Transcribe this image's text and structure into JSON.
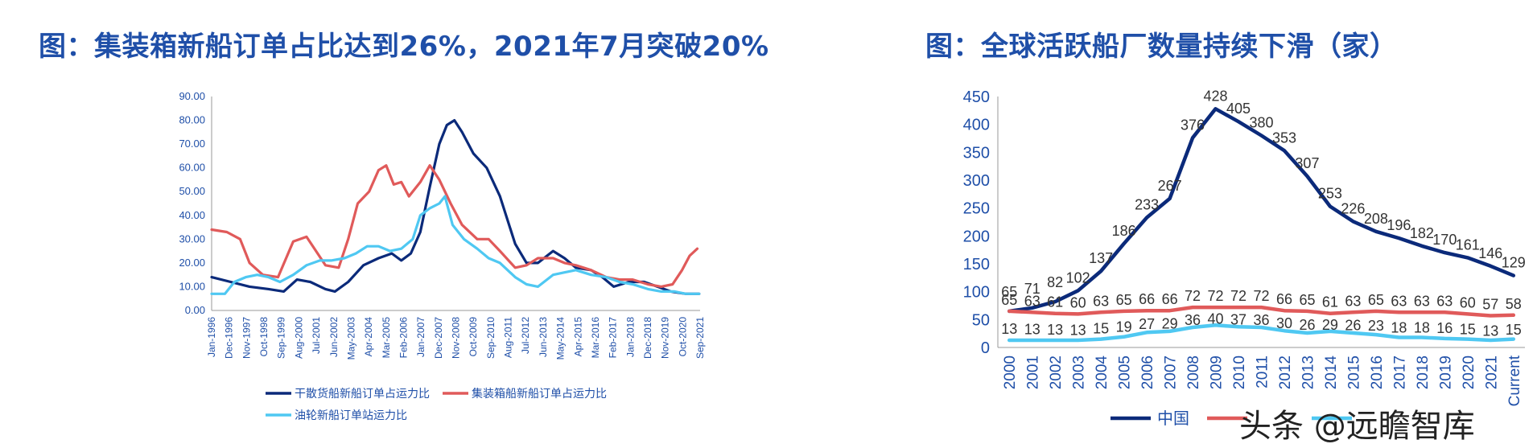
{
  "titles": {
    "left": "图：集装箱新船订单占比达到26%，2021年7月突破20%",
    "right": "图：全球活跃船厂数量持续下滑（家）"
  },
  "watermark": "头条 @远瞻智库",
  "chart_data": [
    {
      "type": "line",
      "ylim": [
        0,
        90
      ],
      "yticks": [
        "0.00",
        "10.00",
        "20.00",
        "30.00",
        "40.00",
        "50.00",
        "60.00",
        "70.00",
        "80.00",
        "90.00"
      ],
      "xticks": [
        "Jan-1996",
        "Dec-1996",
        "Nov-1997",
        "Oct-1998",
        "Sep-1999",
        "Aug-2000",
        "Jul-2001",
        "Jun-2002",
        "May-2003",
        "Apr-2004",
        "Mar-2005",
        "Feb-2006",
        "Jan-2007",
        "Dec-2007",
        "Nov-2008",
        "Oct-2009",
        "Sep-2010",
        "Aug-2011",
        "Jul-2012",
        "Jun-2013",
        "May-2014",
        "Apr-2015",
        "Mar-2016",
        "Feb-2017",
        "Jan-2018",
        "Dec-2018",
        "Nov-2019",
        "Oct-2020",
        "Sep-2021"
      ],
      "series": [
        {
          "name": "干散货船新船订单占运力比",
          "color": "#0b2a7a",
          "x": [
            1996.0,
            1997.0,
            1998.0,
            1999.0,
            1999.8,
            2000.5,
            2001.2,
            2002.0,
            2002.5,
            2003.2,
            2004.0,
            2004.8,
            2005.5,
            2006.0,
            2006.5,
            2007.0,
            2007.5,
            2008.0,
            2008.4,
            2008.8,
            2009.2,
            2009.8,
            2010.5,
            2011.2,
            2012.0,
            2012.6,
            2013.2,
            2014.0,
            2014.6,
            2015.2,
            2016.0,
            2016.6,
            2017.2,
            2018.0,
            2018.8,
            2019.5,
            2020.2,
            2021.0,
            2021.7
          ],
          "values": [
            14,
            12,
            10,
            9,
            8,
            13,
            12,
            9,
            8,
            12,
            19,
            22,
            24,
            21,
            24,
            33,
            52,
            70,
            78,
            80,
            75,
            66,
            60,
            48,
            28,
            20,
            20,
            25,
            22,
            18,
            17,
            14,
            10,
            12,
            12,
            10,
            8,
            7,
            7
          ]
        },
        {
          "name": "集装箱船新船订单占运力比",
          "color": "#e05a5a",
          "x": [
            1996.0,
            1996.8,
            1997.5,
            1998.0,
            1998.7,
            1999.5,
            2000.3,
            2001.0,
            2001.5,
            2002.0,
            2002.7,
            2003.2,
            2003.7,
            2004.3,
            2004.8,
            2005.2,
            2005.6,
            2006.0,
            2006.4,
            2007.0,
            2007.5,
            2008.0,
            2008.6,
            2009.2,
            2010.0,
            2010.6,
            2011.2,
            2012.0,
            2012.6,
            2013.2,
            2014.0,
            2014.6,
            2015.2,
            2016.0,
            2016.8,
            2017.5,
            2018.2,
            2019.0,
            2019.7,
            2020.3,
            2020.8,
            2021.2,
            2021.6
          ],
          "values": [
            34,
            33,
            30,
            20,
            15,
            14,
            29,
            31,
            25,
            19,
            18,
            30,
            45,
            50,
            59,
            61,
            53,
            54,
            48,
            54,
            61,
            55,
            45,
            36,
            30,
            30,
            25,
            18,
            19,
            22,
            22,
            20,
            19,
            17,
            14,
            13,
            13,
            11,
            10,
            11,
            17,
            23,
            26
          ]
        },
        {
          "name": "油轮新船订单站运力比",
          "color": "#4fc8f2",
          "x": [
            1996.0,
            1996.7,
            1997.2,
            1997.8,
            1998.4,
            1999.0,
            1999.6,
            2000.3,
            2001.0,
            2001.7,
            2002.3,
            2003.0,
            2003.6,
            2004.2,
            2004.8,
            2005.4,
            2006.0,
            2006.6,
            2007.0,
            2007.5,
            2008.0,
            2008.3,
            2008.7,
            2009.3,
            2010.0,
            2010.6,
            2011.2,
            2012.0,
            2012.6,
            2013.2,
            2014.0,
            2014.6,
            2015.2,
            2016.0,
            2016.8,
            2017.5,
            2018.2,
            2019.0,
            2019.7,
            2020.4,
            2021.0,
            2021.7
          ],
          "values": [
            7,
            7,
            12,
            14,
            15,
            14,
            12,
            15,
            19,
            21,
            21,
            22,
            24,
            27,
            27,
            25,
            26,
            30,
            40,
            43,
            45,
            48,
            36,
            30,
            26,
            22,
            20,
            14,
            11,
            10,
            15,
            16,
            17,
            15,
            14,
            12,
            11,
            9,
            8,
            8,
            7,
            7
          ]
        }
      ]
    },
    {
      "type": "line",
      "ylim": [
        0,
        450
      ],
      "yticks": [
        "0",
        "50",
        "100",
        "150",
        "200",
        "250",
        "300",
        "350",
        "400",
        "450"
      ],
      "categories": [
        "2000",
        "2001",
        "2002",
        "2003",
        "2004",
        "2005",
        "2006",
        "2007",
        "2008",
        "2009",
        "2010",
        "2011",
        "2012",
        "2013",
        "2014",
        "2015",
        "2016",
        "2017",
        "2018",
        "2019",
        "2020",
        "2021",
        "Current"
      ],
      "series": [
        {
          "name": "中国",
          "color": "#0b2a7a",
          "values": [
            65,
            71,
            82,
            102,
            137,
            186,
            233,
            267,
            376,
            428,
            405,
            380,
            353,
            307,
            253,
            226,
            208,
            196,
            182,
            170,
            161,
            146,
            129
          ],
          "labels": [
            "65",
            "71",
            "82",
            "102",
            "137",
            "186",
            "233",
            "267",
            "376",
            "428",
            "405",
            "380",
            "353",
            "307",
            "253",
            "226",
            "208",
            "196",
            "182",
            "170",
            "161",
            "146",
            "129"
          ]
        },
        {
          "name": "",
          "color": "#e05a5a",
          "values": [
            65,
            63,
            61,
            60,
            63,
            65,
            66,
            66,
            72,
            72,
            72,
            72,
            66,
            65,
            61,
            63,
            65,
            63,
            63,
            63,
            60,
            57,
            58
          ],
          "labels": [
            "65",
            "63",
            "61",
            "60",
            "63",
            "65",
            "66",
            "66",
            "72",
            "72",
            "72",
            "72",
            "66",
            "65",
            "61",
            "63",
            "65",
            "63",
            "63",
            "63",
            "60",
            "57",
            "58"
          ]
        },
        {
          "name": "",
          "color": "#4fc8f2",
          "values": [
            13,
            13,
            13,
            13,
            15,
            19,
            27,
            29,
            36,
            40,
            37,
            36,
            30,
            26,
            29,
            26,
            23,
            18,
            18,
            16,
            15,
            13,
            15
          ],
          "labels": [
            "13",
            "13",
            "13",
            "13",
            "15",
            "19",
            "27",
            "29",
            "36",
            "40",
            "37",
            "36",
            "30",
            "26",
            "29",
            "26",
            "23",
            "18",
            "18",
            "16",
            "15",
            "13",
            "15"
          ]
        }
      ]
    }
  ]
}
